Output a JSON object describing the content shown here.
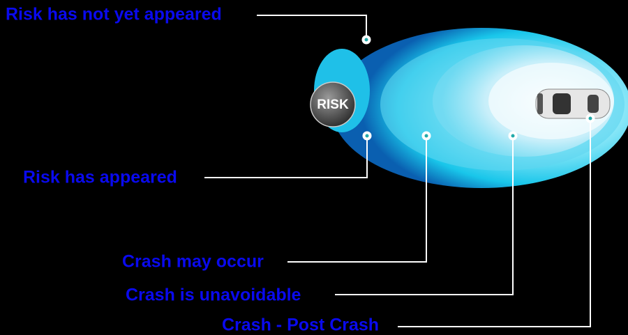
{
  "badge": "RISK",
  "labels": [
    "Risk has not yet appeared",
    "Risk has appeared",
    "Crash may occur",
    "Crash is unavoidable",
    "Crash - Post Crash"
  ]
}
